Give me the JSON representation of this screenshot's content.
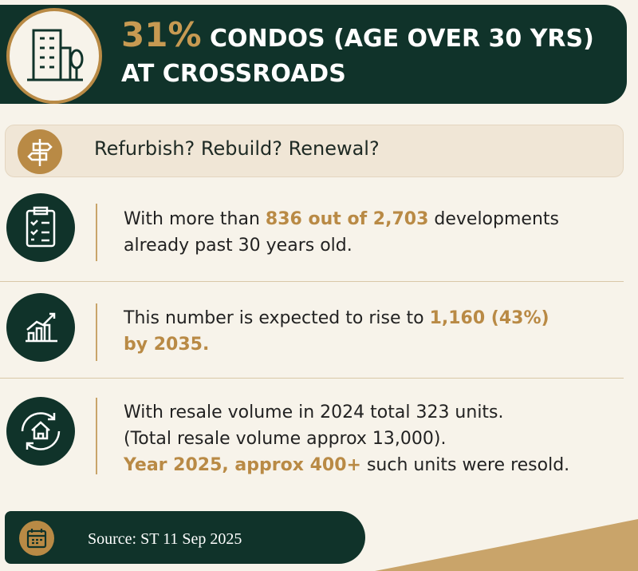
{
  "header": {
    "highlight": "31%",
    "title_rest": "CONDOS (AGE OVER 30 YRS)",
    "title_line2": "AT CROSSROADS"
  },
  "banner": {
    "text": "Refurbish? Rebuild? Renewal?"
  },
  "items": [
    {
      "text": [
        "With more than ",
        "836 out of 2,703",
        " developments",
        "already past 30 years old."
      ]
    },
    {
      "text": [
        "This number is expected to rise to ",
        "1,160 (43%)",
        "by 2035."
      ]
    },
    {
      "text": [
        "With resale volume in 2024 total 323 units.",
        "(Total resale volume approx 13,000).",
        "Year 2025, approx 400+",
        " such units were resold."
      ]
    }
  ],
  "footer": {
    "source": "Source: ST 11 Sep 2025"
  }
}
